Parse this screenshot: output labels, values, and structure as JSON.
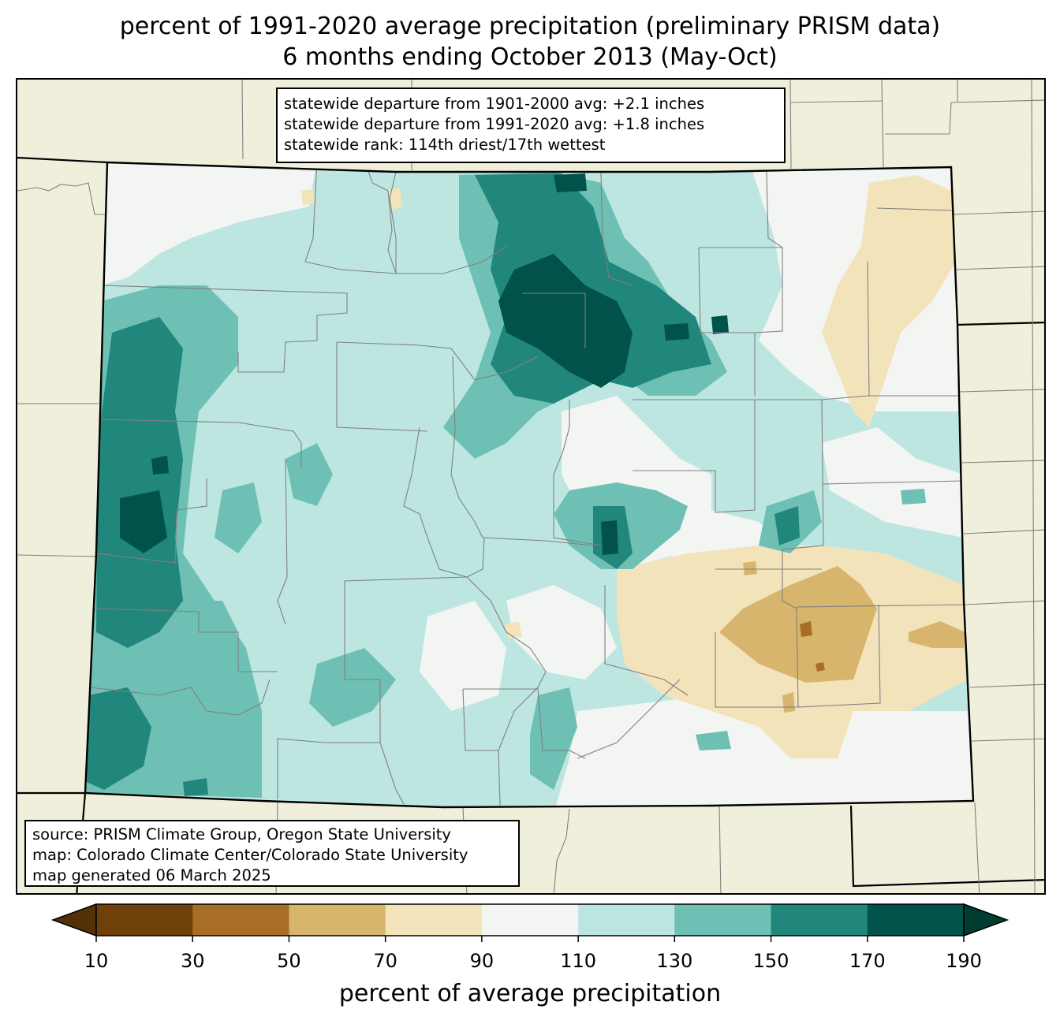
{
  "title": {
    "line1": "percent of 1991-2020 average precipitation (preliminary PRISM data)",
    "line2": "6 months ending October 2013 (May-Oct)"
  },
  "stats_box": {
    "line1": "statewide departure from 1901-2000 avg: +2.1 inches",
    "line2": "statewide departure from 1991-2020 avg: +1.8 inches",
    "line3": "statewide rank: 114th driest/17th wettest"
  },
  "source_box": {
    "line1": "source: PRISM Climate Group, Oregon State University",
    "line2": "map: Colorado Climate Center/Colorado State University",
    "line3": "map generated 06 March 2025"
  },
  "colorbar": {
    "label": "percent of average precipitation",
    "ticks": [
      "10",
      "30",
      "50",
      "70",
      "90",
      "110",
      "130",
      "150",
      "170",
      "190"
    ],
    "colors": [
      "#704009",
      "#a86e25",
      "#d8b56d",
      "#f3e3bb",
      "#f3f5f3",
      "#bde6e1",
      "#6dc0b3",
      "#21867c",
      "#00524a"
    ],
    "under_color": "#543005",
    "over_color": "#003c30"
  },
  "colors": {
    "background_land": "#efefdc",
    "state_border": "#000000",
    "county_border": "#808080"
  }
}
